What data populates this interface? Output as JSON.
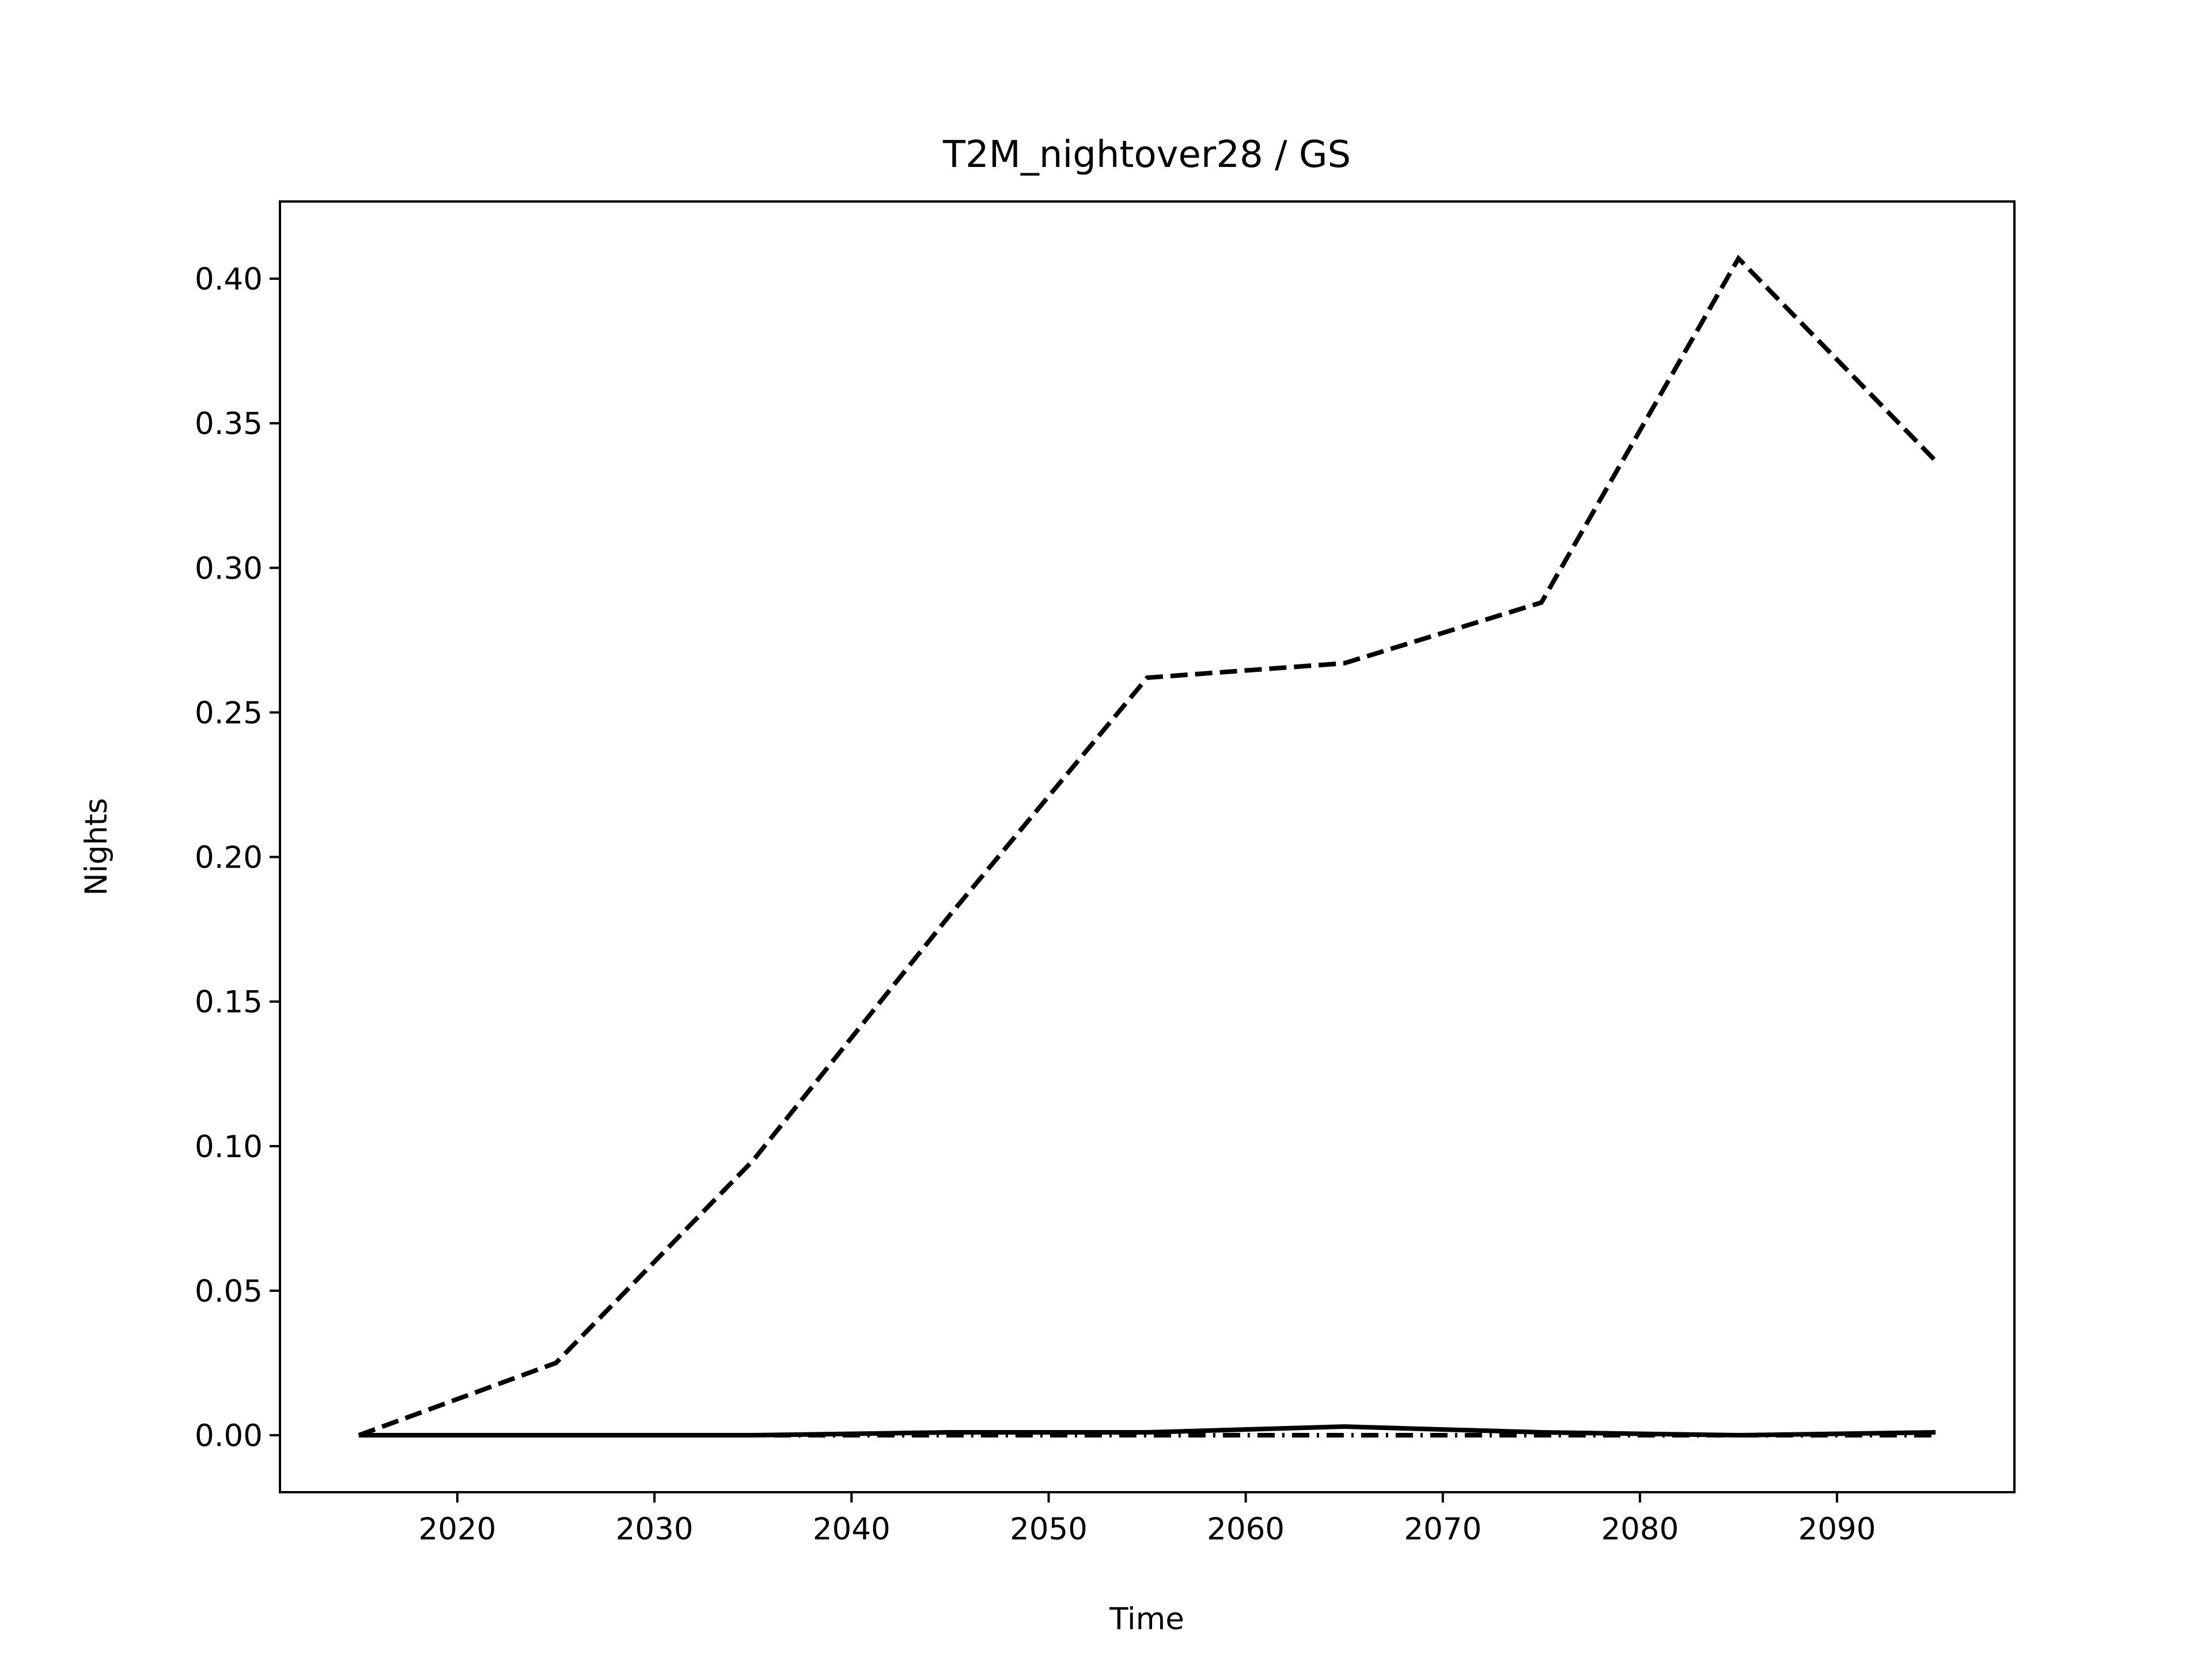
{
  "chart_data": {
    "type": "line",
    "title": "T2M_nightover28 / GS",
    "xlabel": "Time",
    "ylabel": "Nights",
    "x": [
      2015,
      2025,
      2035,
      2045,
      2055,
      2065,
      2075,
      2085,
      2095
    ],
    "series": [
      {
        "color": "#000000",
        "linestyle": "dashed",
        "values": [
          0,
          0.025,
          0.095,
          0.18,
          0.262,
          0.267,
          0.288,
          0.407,
          0.337
        ]
      },
      {
        "color": "#000000",
        "linestyle": "solid",
        "values": [
          0,
          0,
          0,
          0.001,
          0.001,
          0.003,
          0.001,
          0,
          0.001
        ]
      },
      {
        "color": "#000000",
        "linestyle": "dashdot",
        "values": [
          0,
          0,
          0,
          0,
          0,
          0,
          0,
          0,
          0
        ]
      }
    ],
    "xlim": [
      2011,
      2099
    ],
    "xticks": [
      2020,
      2030,
      2040,
      2050,
      2060,
      2070,
      2080,
      2090
    ],
    "ylim": [
      -0.0197,
      0.4267
    ],
    "yticks": [
      {
        "value": 0,
        "label": "0.00"
      },
      {
        "value": 0.05,
        "label": "0.05"
      },
      {
        "value": 0.1,
        "label": "0.10"
      },
      {
        "value": 0.15,
        "label": "0.15"
      },
      {
        "value": 0.2,
        "label": "0.20"
      },
      {
        "value": 0.25,
        "label": "0.25"
      },
      {
        "value": 0.3,
        "label": "0.30"
      },
      {
        "value": 0.35,
        "label": "0.35"
      },
      {
        "value": 0.4,
        "label": "0.40"
      }
    ]
  }
}
